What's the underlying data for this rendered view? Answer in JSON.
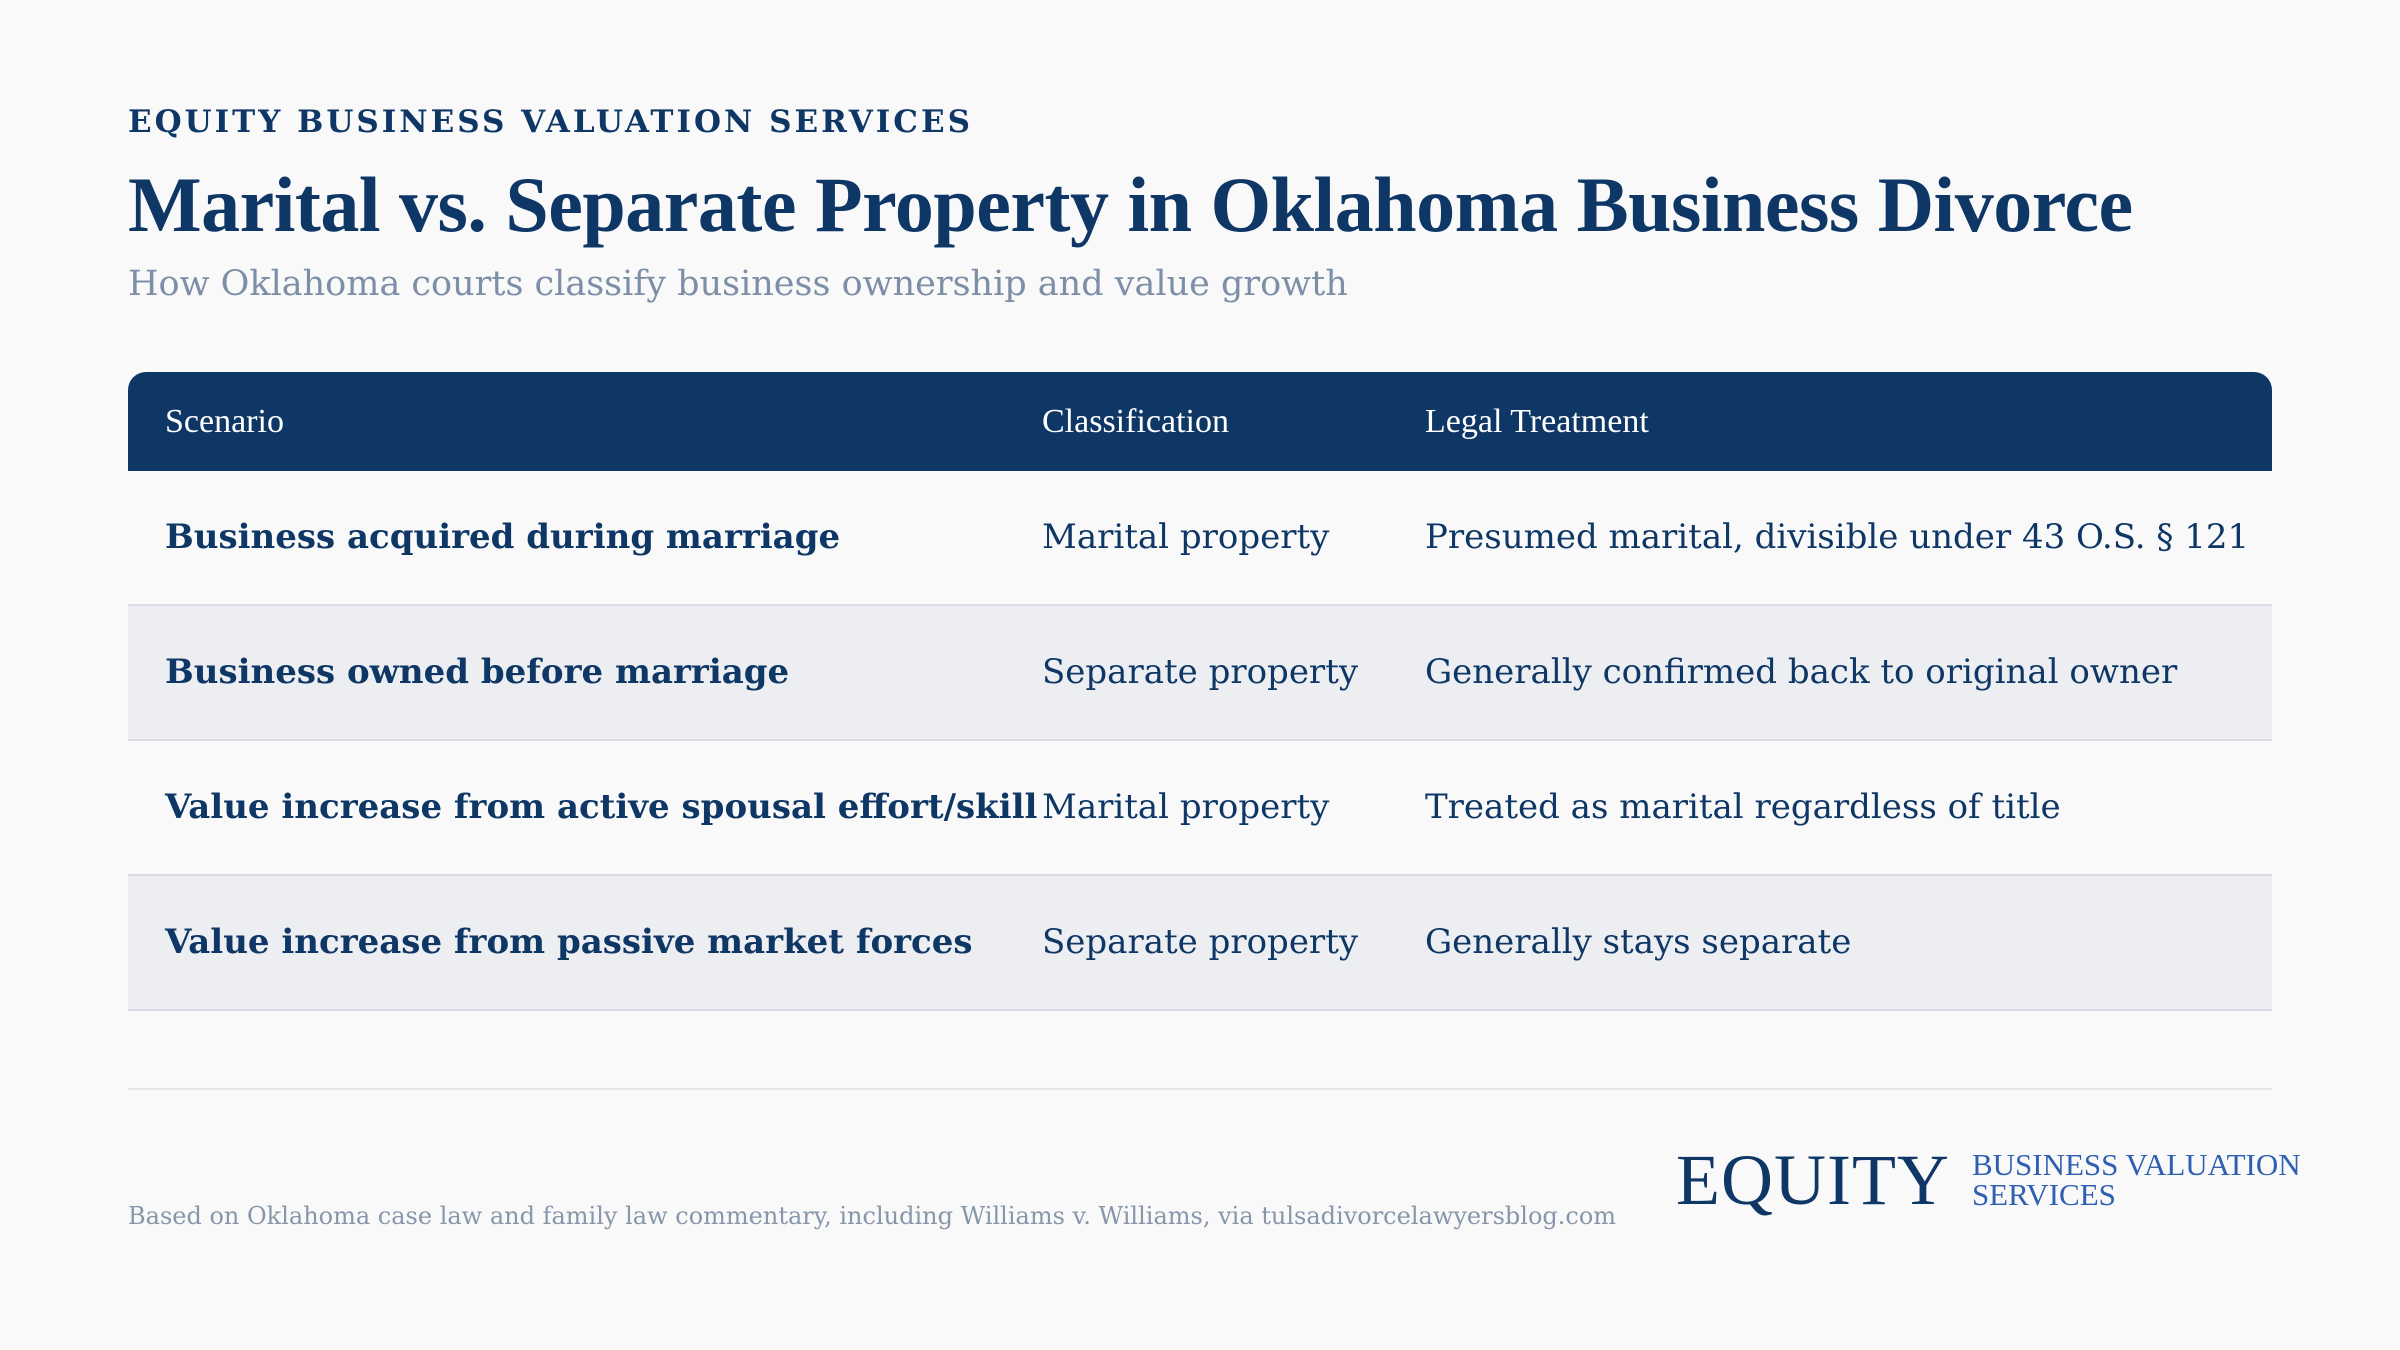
{
  "header": {
    "eyebrow": "EQUITY BUSINESS VALUATION SERVICES",
    "title": "Marital vs. Separate Property in Oklahoma Business Divorce",
    "subtitle": "How Oklahoma courts classify business ownership and value growth"
  },
  "table": {
    "columns": [
      "Scenario",
      "Classification",
      "Legal Treatment"
    ],
    "rows": [
      {
        "scenario": "Business acquired during marriage",
        "classification": "Marital property",
        "treatment": "Presumed marital, divisible under 43 O.S. § 121"
      },
      {
        "scenario": "Business owned before marriage",
        "classification": "Separate property",
        "treatment": "Generally confirmed back to original owner"
      },
      {
        "scenario": "Value increase from active spousal effort/skill",
        "classification": "Marital property",
        "treatment": "Treated as marital regardless of title"
      },
      {
        "scenario": "Value increase from passive market forces",
        "classification": "Separate property",
        "treatment": "Generally stays separate"
      }
    ]
  },
  "footer": {
    "source": "Based on Oklahoma case law and family law commentary, including Williams v. Williams, via tulsadivorcelawyersblog.com",
    "logo_word": "EQUITY",
    "logo_line1": "BUSINESS VALUATION",
    "logo_line2": "SERVICES"
  },
  "colors": {
    "navy": "#0e3766",
    "subtitle_gray": "#7d8ea7",
    "row_alt": "#edeef1",
    "logo_blue": "#2f5fb0"
  }
}
